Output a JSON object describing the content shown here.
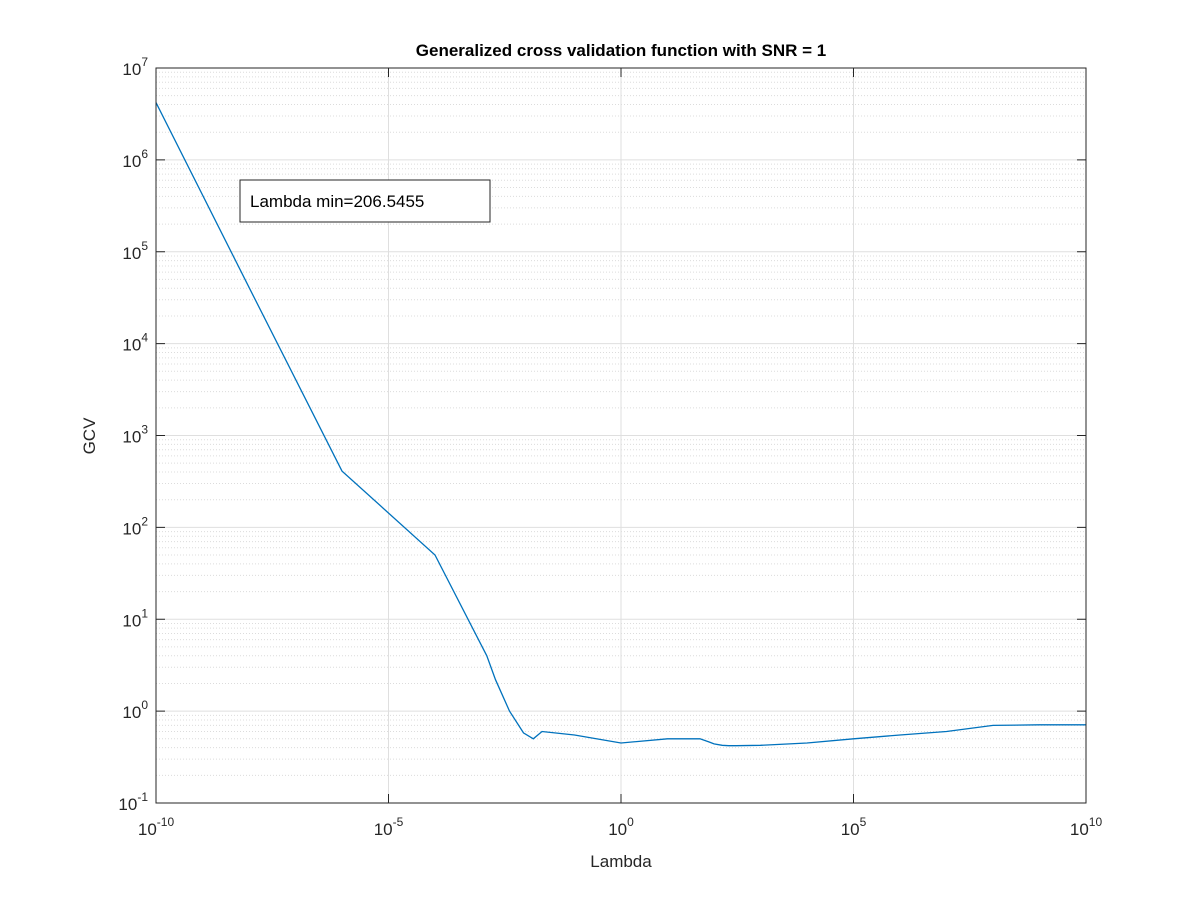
{
  "chart_data": {
    "type": "line",
    "title": "Generalized cross validation function with SNR = 1",
    "xlabel": "Lambda",
    "ylabel": "GCV",
    "xscale": "log",
    "yscale": "log",
    "xlim": [
      1e-10,
      10000000000.0
    ],
    "ylim": [
      0.1,
      10000000.0
    ],
    "grid": true,
    "minor_grid": true,
    "x_ticks": [
      {
        "base": "10",
        "exp": "-10",
        "value": 1e-10
      },
      {
        "base": "10",
        "exp": "-5",
        "value": 1e-05
      },
      {
        "base": "10",
        "exp": "0",
        "value": 1
      },
      {
        "base": "10",
        "exp": "5",
        "value": 100000.0
      },
      {
        "base": "10",
        "exp": "10",
        "value": 10000000000.0
      }
    ],
    "y_ticks": [
      {
        "base": "10",
        "exp": "-1",
        "value": 0.1
      },
      {
        "base": "10",
        "exp": "0",
        "value": 1
      },
      {
        "base": "10",
        "exp": "1",
        "value": 10
      },
      {
        "base": "10",
        "exp": "2",
        "value": 100
      },
      {
        "base": "10",
        "exp": "3",
        "value": 1000
      },
      {
        "base": "10",
        "exp": "4",
        "value": 10000
      },
      {
        "base": "10",
        "exp": "5",
        "value": 100000
      },
      {
        "base": "10",
        "exp": "6",
        "value": 1000000
      },
      {
        "base": "10",
        "exp": "7",
        "value": 10000000
      }
    ],
    "series": [
      {
        "color": "#0072bd",
        "x": [
          1e-10,
          1e-08,
          1e-06,
          0.0001,
          0.0013,
          0.002,
          0.004,
          0.008,
          0.013,
          0.02,
          0.1,
          1,
          10,
          50,
          80,
          100,
          150,
          206.5455,
          300,
          1000,
          10000.0,
          100000.0,
          1000000.0,
          10000000.0,
          100000000.0,
          1000000000.0,
          10000000000.0
        ],
        "y": [
          4200000.0,
          41000.0,
          410,
          50,
          4,
          2.2,
          1.0,
          0.58,
          0.5,
          0.6,
          0.55,
          0.45,
          0.5,
          0.5,
          0.46,
          0.44,
          0.425,
          0.42,
          0.42,
          0.425,
          0.45,
          0.5,
          0.55,
          0.6,
          0.7,
          0.71,
          0.71
        ]
      }
    ],
    "annotation": {
      "text": "Lambda min=206.5455"
    }
  }
}
